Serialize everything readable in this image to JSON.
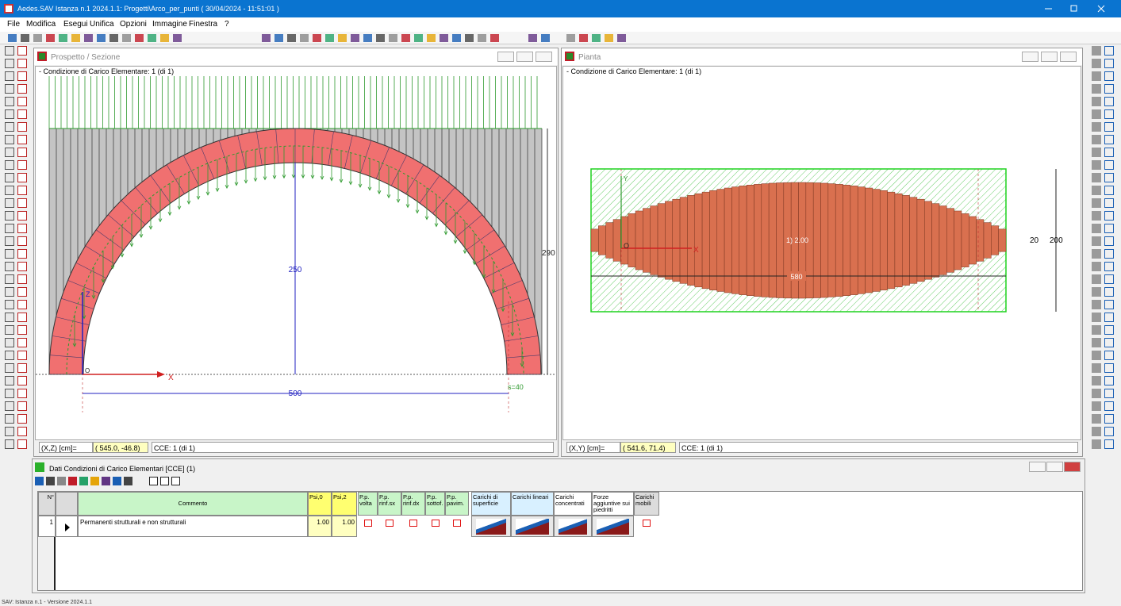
{
  "window": {
    "title": "Aedes.SAV Istanza n.1 2024.1.1: Progetti\\Arco_per_punti  ( 30/04/2024 - 11:51:01 )"
  },
  "menu": [
    "File",
    "Modifica",
    "Esegui",
    "Unifica",
    "Opzioni",
    "Immagine",
    "Finestra",
    "?"
  ],
  "elevation": {
    "title": "Prospetto / Sezione",
    "condition": "- Condizione di Carico Elementare: 1  (di 1)",
    "dims": {
      "height_inner": "250",
      "height_total": "290",
      "span": "500",
      "thickness": "s=40"
    },
    "axis_x": "X",
    "axis_z": "Z",
    "origin": "O",
    "status_label": "(X,Z) [cm]=",
    "status_coords": "( 545.0, -46.8)",
    "status_cce": "CCE: 1  (di 1)"
  },
  "plan": {
    "title": "Pianta",
    "condition": "- Condizione di Carico Elementare: 1  (di 1)",
    "region_label": "1) 2.00",
    "dims": {
      "length": "580",
      "width": "200",
      "thickness": "20"
    },
    "axis_x": "X",
    "axis_y": "Y",
    "origin": "O",
    "status_label": "(X,Y) [cm]=",
    "status_coords": "( 541.6, 71.4)",
    "status_cce": "CCE: 1  (di 1)"
  },
  "cce_panel": {
    "title": "Dati Condizioni di Carico Elementari [CCE] (1)",
    "table": {
      "headers": [
        "N°",
        "Commento",
        "Psi,0",
        "Psi,2",
        "P.p. volta",
        "P.p. rinf.sx",
        "P.p. rinf.dx",
        "P.p. sottof.",
        "P.p. pavim.",
        "Carichi di superficie",
        "Carichi lineari",
        "Carichi concentrati",
        "Forze aggiuntive sui piedritti",
        "Carichi mobili"
      ],
      "rows": [
        [
          "1",
          "Permanenti strutturali e non strutturali",
          "1.00",
          "1.00"
        ]
      ]
    }
  },
  "status_bar": "SAV: Istanza n.1 - Versione 2024.1.1"
}
